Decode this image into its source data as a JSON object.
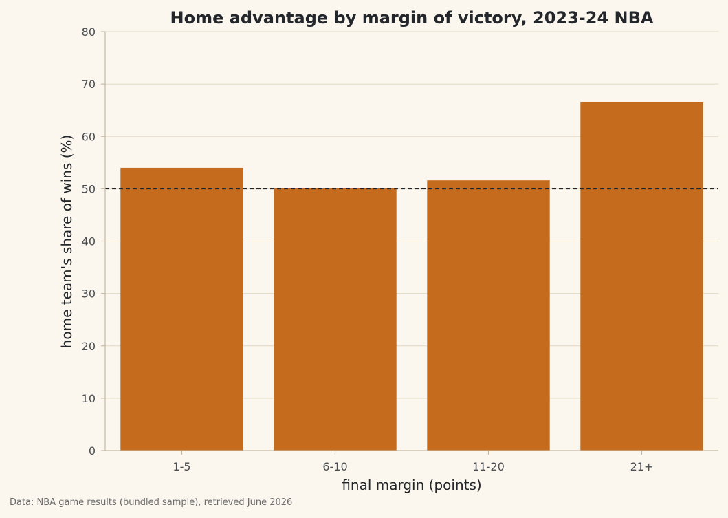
{
  "chart_data": {
    "type": "bar",
    "title": "Home advantage by margin of victory, 2023-24 NBA",
    "xlabel": "final margin (points)",
    "ylabel": "home team's share of wins (%)",
    "categories": [
      "1-5",
      "6-10",
      "11-20",
      "21+"
    ],
    "values": [
      54.0,
      50.1,
      51.6,
      66.5
    ],
    "ylim": [
      0,
      80
    ],
    "yticks": [
      0,
      10,
      20,
      30,
      40,
      50,
      60,
      70,
      80
    ],
    "reference_line": {
      "y": 50,
      "style": "dashed"
    },
    "grid": "horizontal",
    "legend": "none"
  },
  "source_note": "Data: NBA game results (bundled sample), retrieved June 2026",
  "colors": {
    "bar": "#c46b1e",
    "background": "#fbf7ef",
    "grid": "#e2d8c2",
    "axis": "#c5b9a3",
    "reference_line": "#23262b"
  }
}
